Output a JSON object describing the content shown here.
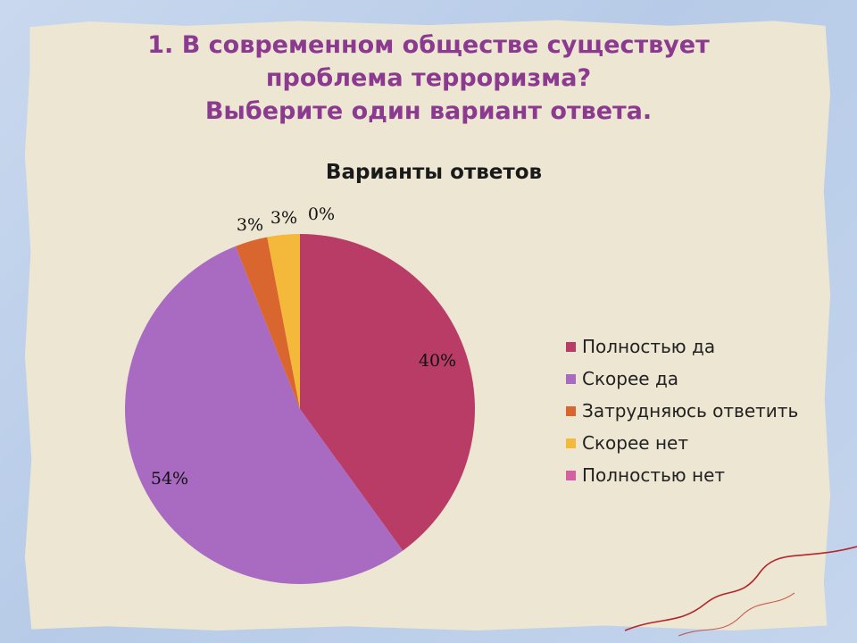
{
  "slide": {
    "title_lines": [
      "1. В современном обществе существует",
      "проблема терроризма?",
      "Выберите один вариант ответа."
    ]
  },
  "chart_data": {
    "type": "pie",
    "title": "Варианты ответов",
    "categories": [
      "Полностью да",
      "Скорее да",
      "Затрудняюсь ответить",
      "Скорее нет",
      "Полностью нет"
    ],
    "values": [
      40,
      54,
      3,
      3,
      0
    ],
    "labels": [
      "40%",
      "54%",
      "3%",
      "3%",
      "0%"
    ],
    "colors": [
      "#b83c66",
      "#a96ac2",
      "#d9662e",
      "#f4b83a",
      "#d65ea3"
    ],
    "legend_position": "right"
  }
}
